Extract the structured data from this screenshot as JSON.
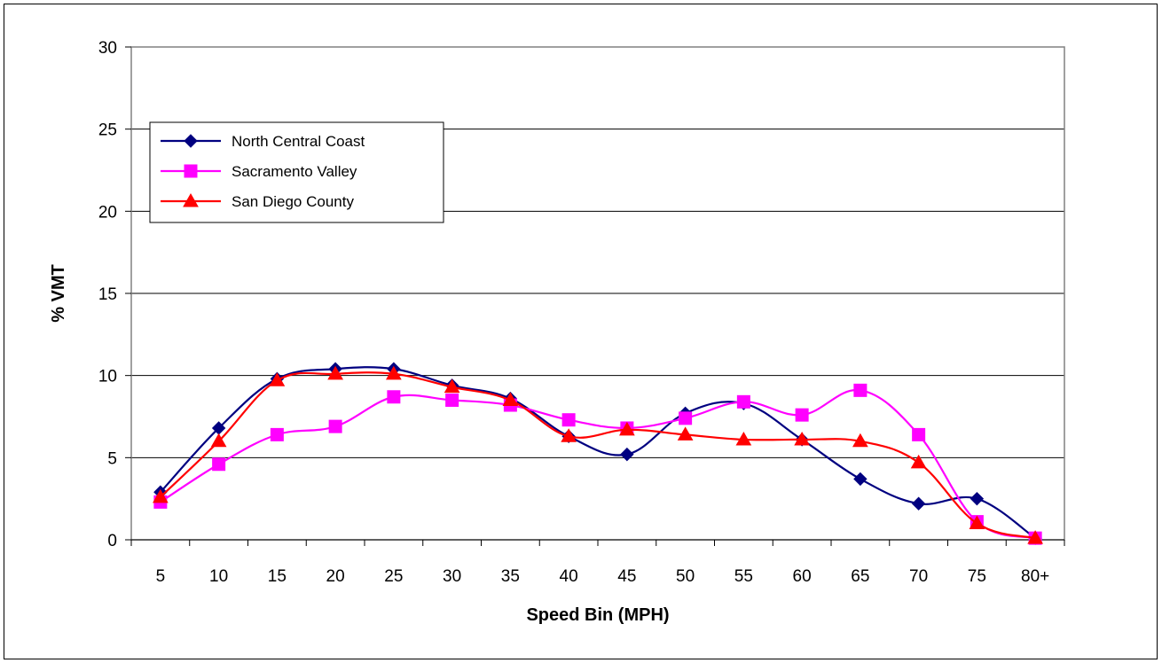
{
  "chart_data": {
    "type": "line",
    "title": "",
    "xlabel": "Speed Bin (MPH)",
    "ylabel": "% VMT",
    "categories": [
      "5",
      "10",
      "15",
      "20",
      "25",
      "30",
      "35",
      "40",
      "45",
      "50",
      "55",
      "60",
      "65",
      "70",
      "75",
      "80+"
    ],
    "ylim": [
      0,
      30
    ],
    "yticks": [
      0,
      5,
      10,
      15,
      20,
      25,
      30
    ],
    "grid": "horizontal",
    "legend_position": "upper-left",
    "series": [
      {
        "name": "North Central Coast",
        "color": "#000080",
        "marker": "diamond",
        "values": [
          2.9,
          6.8,
          9.8,
          10.4,
          10.4,
          9.4,
          8.6,
          6.3,
          5.2,
          7.7,
          8.3,
          6.1,
          3.7,
          2.2,
          2.5,
          0.1
        ]
      },
      {
        "name": "Sacramento Valley",
        "color": "#ff00ff",
        "marker": "square",
        "values": [
          2.3,
          4.6,
          6.4,
          6.9,
          8.7,
          8.5,
          8.2,
          7.3,
          6.8,
          7.4,
          8.4,
          7.6,
          9.1,
          6.4,
          1.1,
          0.1
        ]
      },
      {
        "name": "San Diego County",
        "color": "#ff0000",
        "marker": "triangle",
        "values": [
          2.6,
          6.0,
          9.7,
          10.1,
          10.1,
          9.3,
          8.5,
          6.3,
          6.7,
          6.4,
          6.1,
          6.1,
          6.0,
          4.7,
          1.0,
          0.1
        ]
      }
    ]
  }
}
